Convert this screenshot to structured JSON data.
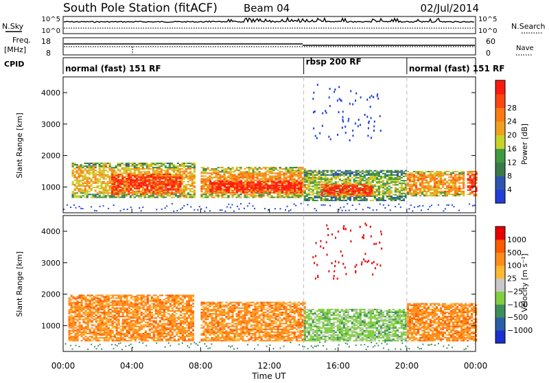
{
  "header": {
    "station": "South Pole Station (fitACF)",
    "beam": "Beam 04",
    "date": "02/Jul/2014"
  },
  "colors": {
    "power_scale": [
      "#1f3fd8",
      "#2d55b0",
      "#3a7a4a",
      "#3f9a3f",
      "#c8d22a",
      "#f0a020",
      "#ff7a10",
      "#ff4510",
      "#ff1a10"
    ],
    "velocity_scale": [
      "#e80000",
      "#ff5a00",
      "#ff8c1a",
      "#ffb830",
      "#c8c8c8",
      "#7fcf3f",
      "#3c8f5a",
      "#2a5ea8",
      "#1a2fcf"
    ],
    "grid_dash": "#bbbbbb"
  },
  "top_panels": {
    "nsky_label": "N.Sky",
    "nsky_ticks": [
      "10^5",
      "10^0"
    ],
    "nsearch_label": "N.Search",
    "nsearch_ticks": [
      "10^5",
      "10^0"
    ],
    "freq_label": "Freq.",
    "freq_unit": "[MHz]",
    "freq_ticks": [
      "18",
      "8"
    ],
    "nave_label": "Nave",
    "nave_ticks": [
      "60",
      "0"
    ],
    "cpid_label": "CPID"
  },
  "cpid_segments": [
    {
      "label": "normal (fast) 151 RF",
      "start_h": 0,
      "end_h": 14
    },
    {
      "label": "rbsp 200 RF",
      "start_h": 14,
      "end_h": 20
    },
    {
      "label": "normal (fast) 151 RF",
      "start_h": 20,
      "end_h": 24
    }
  ],
  "chart_data": [
    {
      "type": "heatmap",
      "ylabel": "Slant Range [km]",
      "x_ticks": [
        "00:00",
        "04:00",
        "08:00",
        "12:00",
        "16:00",
        "20:00",
        "00:00"
      ],
      "y_ticks": [
        "1000",
        "2000",
        "3000",
        "4000"
      ],
      "xlim_hours": [
        0,
        24
      ],
      "ylim_km": [
        180,
        4500
      ],
      "colorbar": {
        "label": "Power [dB]",
        "ticks": [
          "4",
          "8",
          "12",
          "16",
          "20",
          "24",
          "28"
        ],
        "range": [
          0,
          30
        ]
      },
      "regions": [
        {
          "t0": 0.5,
          "t1": 7.6,
          "r0": 650,
          "r1": 1750,
          "v": 18
        },
        {
          "t0": 2.8,
          "t1": 6.8,
          "r0": 750,
          "r1": 1400,
          "v": 27
        },
        {
          "t0": 8.0,
          "t1": 14.0,
          "r0": 650,
          "r1": 1600,
          "v": 20
        },
        {
          "t0": 8.5,
          "t1": 13.8,
          "r0": 800,
          "r1": 1200,
          "v": 29
        },
        {
          "t0": 14.0,
          "t1": 20.0,
          "r0": 550,
          "r1": 1500,
          "v": 14
        },
        {
          "t0": 15.0,
          "t1": 18.0,
          "r0": 700,
          "r1": 1100,
          "v": 27
        },
        {
          "t0": 20.0,
          "t1": 23.3,
          "r0": 700,
          "r1": 1500,
          "v": 20
        },
        {
          "t0": 23.5,
          "t1": 24.0,
          "r0": 700,
          "r1": 1500,
          "v": 26
        }
      ]
    },
    {
      "type": "heatmap",
      "ylabel": "Slant Range [km]",
      "xlabel": "Time UT",
      "x_ticks": [
        "00:00",
        "04:00",
        "08:00",
        "12:00",
        "16:00",
        "20:00",
        "00:00"
      ],
      "y_ticks": [
        "1000",
        "2000",
        "3000",
        "4000"
      ],
      "xlim_hours": [
        0,
        24
      ],
      "ylim_km": [
        180,
        4500
      ],
      "colorbar": {
        "label": "Velocity [m s⁻¹]",
        "ticks": [
          "1000",
          "500",
          "100",
          "25",
          "−25",
          "−100",
          "−500",
          "−1000"
        ]
      },
      "regions": [
        {
          "t0": 0.3,
          "t1": 7.6,
          "r0": 500,
          "r1": 1950,
          "v": 2
        },
        {
          "t0": 8.0,
          "t1": 14.0,
          "r0": 500,
          "r1": 1750,
          "v": 2
        },
        {
          "t0": 14.0,
          "t1": 20.0,
          "r0": 500,
          "r1": 1500,
          "v": 5
        },
        {
          "t0": 20.0,
          "t1": 24.0,
          "r0": 500,
          "r1": 1700,
          "v": 2
        }
      ]
    }
  ]
}
